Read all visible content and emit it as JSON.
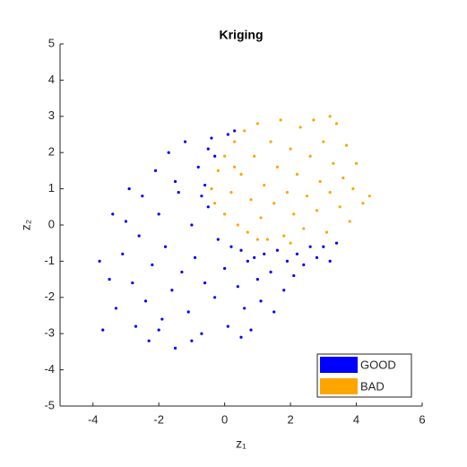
{
  "chart_data": {
    "type": "scatter",
    "title": "Kriging",
    "xlabel": "z₁",
    "ylabel": "z₂",
    "xlim": [
      -5,
      6
    ],
    "xticks": [
      -4,
      -2,
      0,
      2,
      4,
      6
    ],
    "ylim": [
      -5,
      5
    ],
    "yticks": [
      -5,
      -4,
      -3,
      -2,
      -1,
      0,
      1,
      2,
      3,
      4,
      5
    ],
    "legend": "lower right",
    "series": [
      {
        "name": "GOOD",
        "color": "#0000ff",
        "x": [
          -3.7,
          -3.5,
          -3.3,
          -3.1,
          -3.0,
          -2.8,
          -2.7,
          -2.6,
          -2.5,
          -2.4,
          -2.3,
          -2.2,
          -2.1,
          -2.0,
          -1.9,
          -1.8,
          -1.7,
          -1.6,
          -1.5,
          -1.4,
          -1.3,
          -1.2,
          -1.1,
          -1.0,
          -0.9,
          -0.8,
          -0.7,
          -0.6,
          -0.5,
          -0.4,
          -0.3,
          -0.2,
          -0.3,
          0.0,
          0.1,
          0.2,
          0.3,
          0.4,
          0.5,
          0.6,
          0.7,
          0.8,
          0.9,
          1.0,
          1.1,
          1.2,
          1.4,
          1.5,
          1.6,
          1.8,
          1.9,
          2.1,
          2.2,
          2.4,
          2.6,
          2.8,
          3.0,
          3.2,
          3.4,
          -3.8,
          -3.4,
          -2.9,
          -1.0,
          -2.0,
          0.5,
          -0.7,
          -0.6,
          -0.5,
          -1.5,
          0.1
        ],
        "values": [
          -2.9,
          -1.5,
          -2.3,
          -0.8,
          0.1,
          -1.6,
          -2.8,
          -0.3,
          0.8,
          -2.1,
          -3.2,
          -1.1,
          1.5,
          0.3,
          -2.6,
          -0.6,
          2.0,
          -1.8,
          -3.4,
          0.9,
          -1.3,
          2.3,
          -2.4,
          0.0,
          -0.9,
          1.6,
          -3.0,
          -1.6,
          0.5,
          2.4,
          -2.0,
          -0.4,
          1.9,
          -1.2,
          -2.8,
          -0.6,
          2.6,
          -1.7,
          -0.7,
          -2.3,
          -1.0,
          -2.9,
          -0.9,
          -1.5,
          -2.1,
          -0.8,
          -1.3,
          -2.4,
          -0.7,
          -1.8,
          -1.0,
          -1.4,
          -0.8,
          -1.1,
          -0.6,
          -0.9,
          -0.6,
          -1.0,
          -0.5,
          -1.0,
          0.3,
          1.0,
          -3.2,
          -2.9,
          -3.1,
          0.8,
          1.1,
          2.1,
          1.2,
          2.5
        ]
      },
      {
        "name": "BAD",
        "color": "#ffa500",
        "x": [
          -0.4,
          -0.3,
          -0.2,
          0.0,
          0.0,
          0.2,
          0.3,
          0.4,
          0.5,
          0.6,
          0.7,
          0.8,
          0.9,
          1.0,
          1.1,
          1.2,
          1.3,
          1.4,
          1.5,
          1.6,
          1.7,
          1.8,
          1.9,
          2.0,
          2.1,
          2.2,
          2.3,
          2.4,
          2.5,
          2.6,
          2.7,
          2.8,
          2.9,
          3.0,
          3.1,
          3.2,
          3.3,
          3.4,
          3.5,
          3.6,
          3.7,
          3.8,
          3.9,
          4.0,
          4.2,
          4.4,
          3.2,
          1.0,
          0.3,
          2.0
        ],
        "values": [
          1.0,
          0.6,
          1.5,
          0.3,
          1.9,
          0.9,
          2.3,
          0.0,
          1.4,
          2.6,
          -0.2,
          0.7,
          1.9,
          2.8,
          0.2,
          1.1,
          -0.4,
          2.3,
          0.6,
          1.6,
          2.9,
          -0.3,
          0.9,
          2.1,
          0.3,
          1.4,
          2.7,
          -0.1,
          0.8,
          1.9,
          2.9,
          0.4,
          1.2,
          2.3,
          -0.2,
          0.9,
          1.7,
          2.8,
          0.5,
          1.3,
          2.2,
          0.1,
          1.0,
          1.7,
          0.6,
          0.8,
          3.0,
          -0.4,
          1.6,
          -0.5
        ]
      }
    ]
  }
}
